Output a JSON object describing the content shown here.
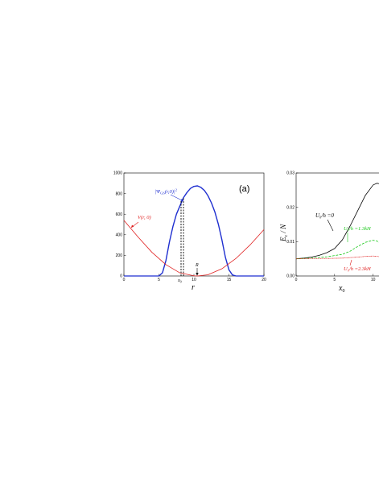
{
  "chart_data": [
    {
      "type": "line",
      "panel_label": "(a)",
      "xlabel": "r",
      "ylabel": "",
      "xlim": [
        0,
        20
      ],
      "ylim": [
        0,
        1000
      ],
      "xticks": [
        "0",
        "5",
        "10",
        "15",
        "20"
      ],
      "yticks": [
        "0",
        "200",
        "400",
        "600",
        "800",
        "1000"
      ],
      "series": [
        {
          "name": "|Ψ_GS(r,0)|²",
          "color": "#1f2fd0",
          "x": [
            5.0,
            5.5,
            6.0,
            6.5,
            7.0,
            7.5,
            8.0,
            8.5,
            9.0,
            9.5,
            10.0,
            10.5,
            11.0,
            11.5,
            12.0,
            12.5,
            13.0,
            13.5,
            14.0,
            14.5,
            15.0,
            15.5,
            16.0
          ],
          "y": [
            0,
            30,
            150,
            330,
            480,
            600,
            680,
            760,
            810,
            850,
            870,
            875,
            860,
            830,
            780,
            710,
            620,
            500,
            350,
            180,
            60,
            10,
            0
          ]
        },
        {
          "name": "V(r, 0)",
          "color": "#e02020",
          "x": [
            0,
            2,
            4,
            6,
            8,
            10,
            10.5,
            12,
            14,
            16,
            18,
            20
          ],
          "y": [
            540,
            380,
            230,
            110,
            30,
            2,
            0,
            12,
            70,
            170,
            300,
            450
          ]
        }
      ],
      "annotations": {
        "psi_label": "|Ψ",
        "psi_sub": "GS",
        "psi_rest": "(r,0)|",
        "psi_sup": "2",
        "v_label": "V(r, 0)",
        "x0_label": "x",
        "x0_sub": "0",
        "R_label": "R"
      }
    },
    {
      "type": "line",
      "xlabel": "x",
      "xlabel_sub": "0",
      "ylabel": "E",
      "ylabel_sub": "c",
      "ylabel_rest": " / N",
      "xlim": [
        0,
        11.5
      ],
      "ylim": [
        0,
        0.03
      ],
      "xticks": [
        "0",
        "5",
        "10"
      ],
      "yticks": [
        "0.00",
        "0.01",
        "0.02",
        "0.03"
      ],
      "series": [
        {
          "name": "U₀/h =0",
          "color": "#000000",
          "x": [
            0,
            1,
            2,
            3,
            4,
            5,
            6,
            7,
            8,
            9,
            10,
            10.5,
            11,
            11.5
          ],
          "y": [
            0.005,
            0.0052,
            0.0055,
            0.006,
            0.0068,
            0.008,
            0.0105,
            0.0145,
            0.019,
            0.0235,
            0.0265,
            0.027,
            0.0268,
            0.0262
          ]
        },
        {
          "name": "U₀/h =1.3kHz",
          "color": "#18c818",
          "x": [
            0,
            2,
            4,
            6,
            7,
            8,
            9,
            10,
            10.5,
            11,
            11.5
          ],
          "y": [
            0.005,
            0.0052,
            0.0056,
            0.0063,
            0.0072,
            0.0086,
            0.0098,
            0.0104,
            0.0102,
            0.0094,
            0.0088
          ]
        },
        {
          "name": "U₀/h =2.3kHz",
          "color": "#e02020",
          "x": [
            0,
            2,
            4,
            6,
            8,
            9,
            10,
            11,
            11.5
          ],
          "y": [
            0.005,
            0.0051,
            0.0051,
            0.0052,
            0.0055,
            0.0057,
            0.0058,
            0.0056,
            0.0054
          ]
        }
      ],
      "annotations": {
        "u0_a": "U₀/h =0",
        "u0_b": "U₀/h =1.3kH",
        "u0_c": "U₀/h =2.3kH"
      }
    }
  ]
}
